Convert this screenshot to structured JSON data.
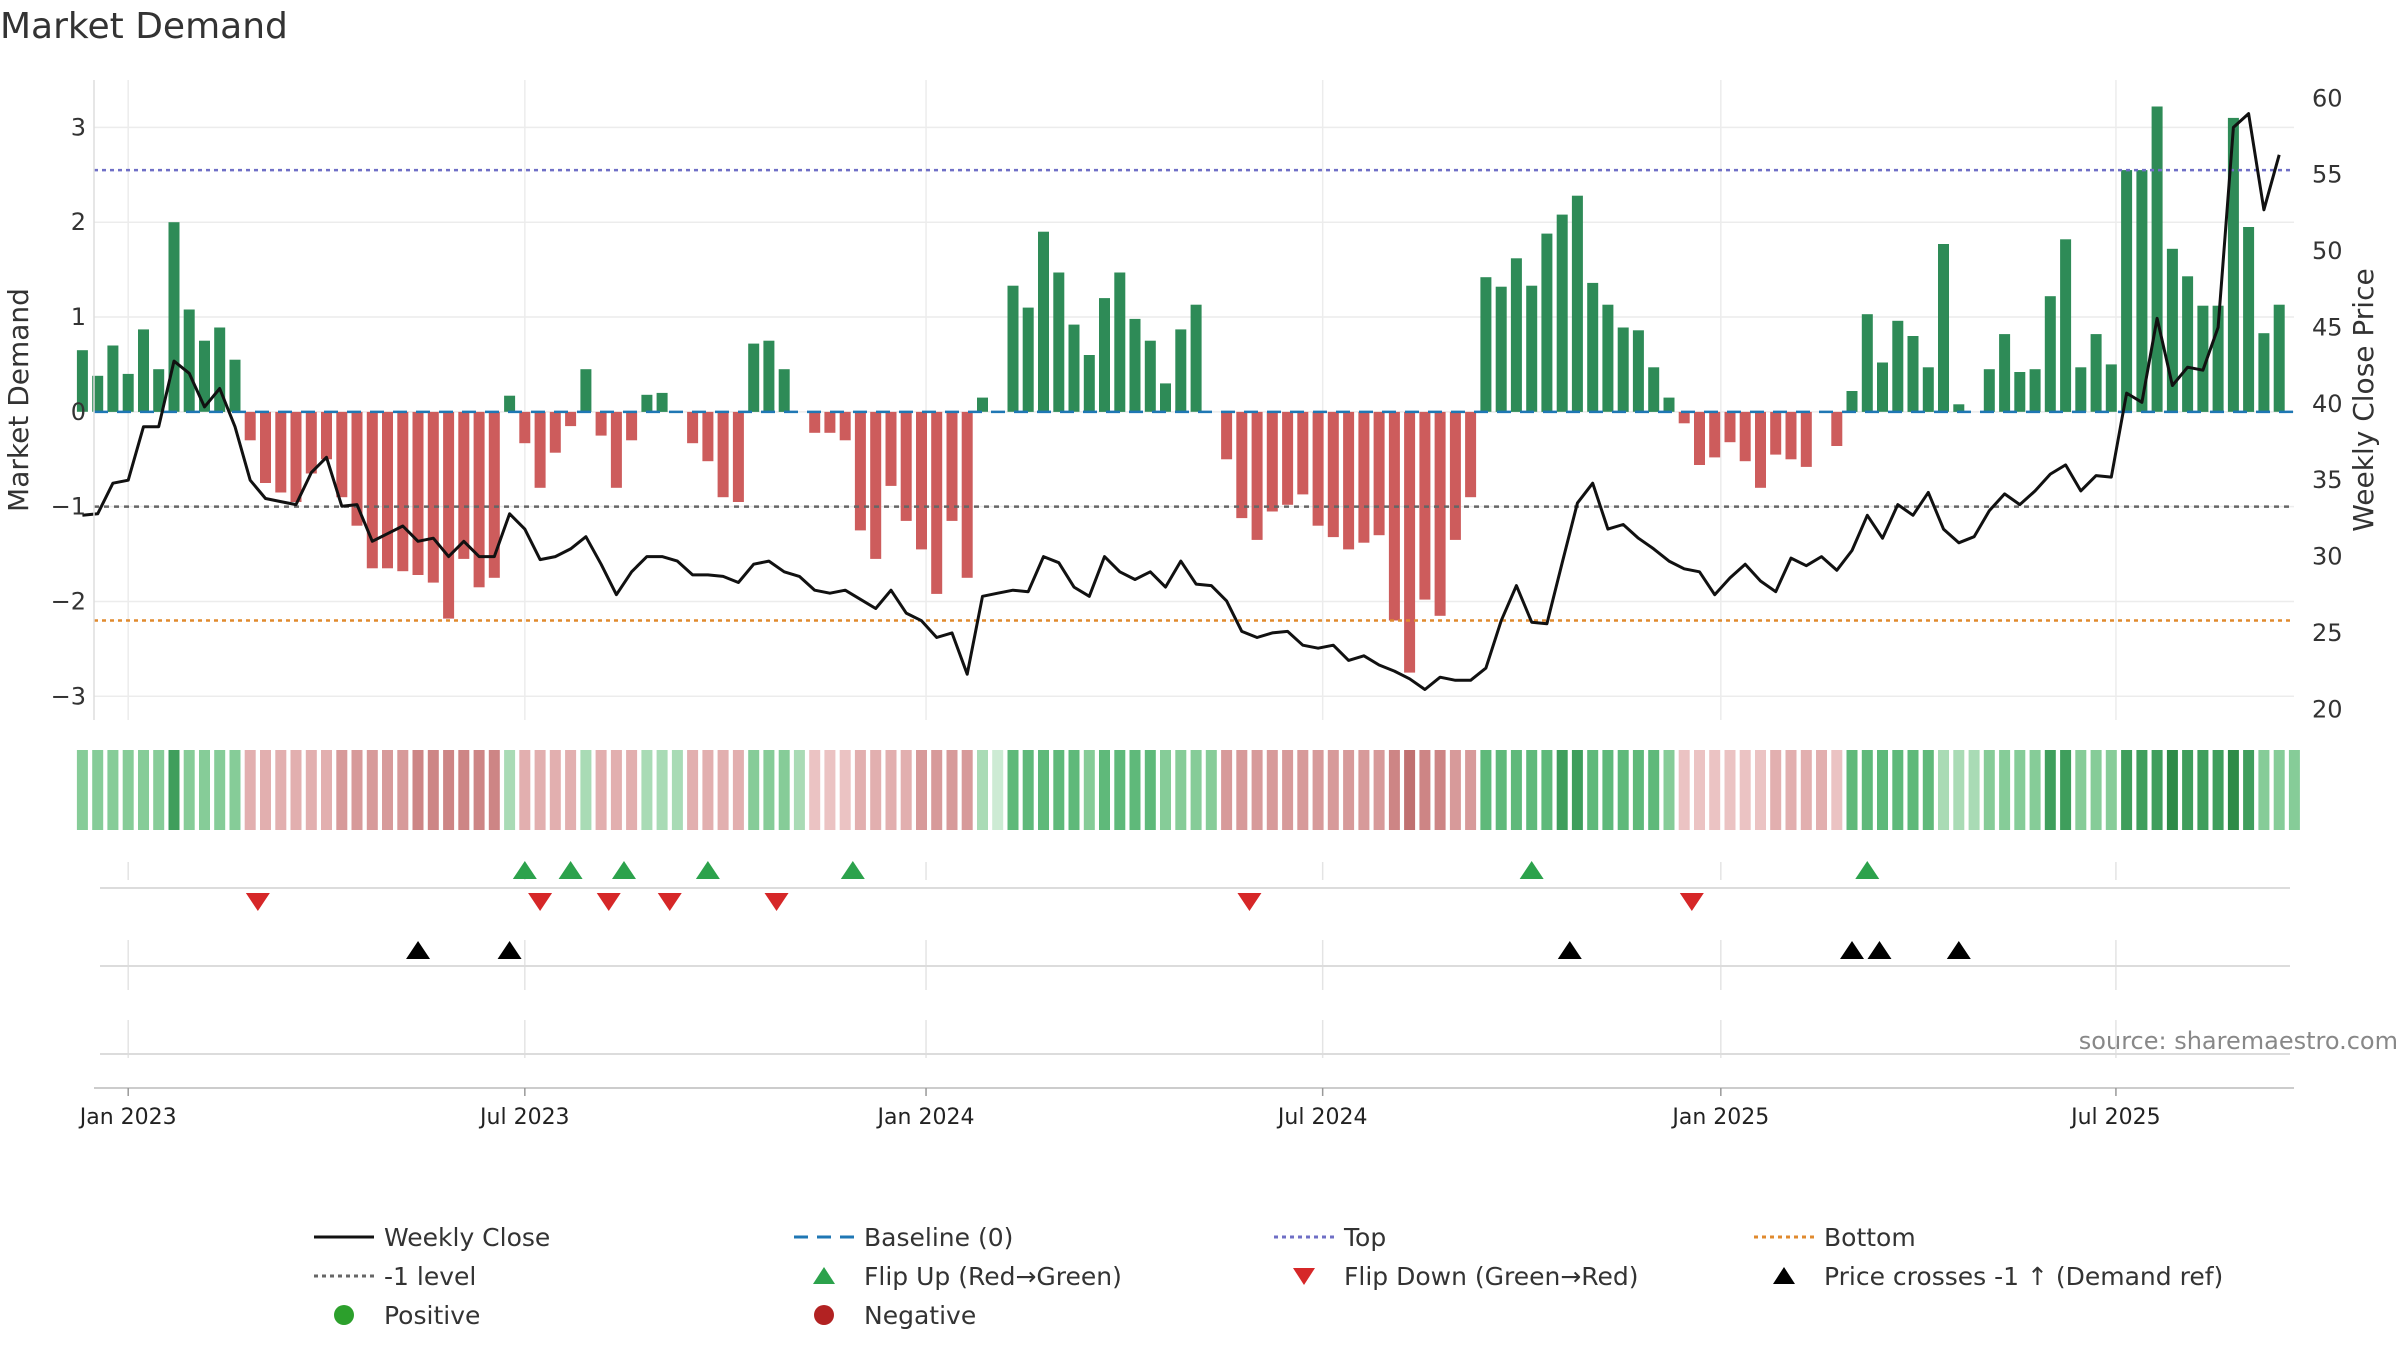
{
  "chart_data": {
    "type": "bar",
    "title": "Market Demand",
    "source_note": "source: sharemaestro.com",
    "y_left": {
      "label": "Market Demand",
      "lim": [
        -3.25,
        3.5
      ],
      "ticks": [
        -3,
        -2,
        -1,
        0,
        1,
        2,
        3
      ],
      "tick_labels": [
        "−3",
        "−2",
        "−1",
        "0",
        "1",
        "2",
        "3"
      ]
    },
    "y_right": {
      "label": "Weekly Close Price",
      "lim": [
        19.3,
        61.2
      ],
      "ticks": [
        20,
        25,
        30,
        35,
        40,
        45,
        50,
        55,
        60
      ],
      "tick_labels": [
        "20",
        "25",
        "30",
        "35",
        "40",
        "45",
        "50",
        "55",
        "60"
      ]
    },
    "x": {
      "start_week_offset": -3,
      "num_weeks": 146,
      "month_ticks": [
        {
          "week": 0,
          "label": "Jan 2023"
        },
        {
          "week": 26,
          "label": "Jul 2023"
        },
        {
          "week": 52.3,
          "label": "Jan 2024"
        },
        {
          "week": 78.3,
          "label": "Jul 2024"
        },
        {
          "week": 104.4,
          "label": "Jan 2025"
        },
        {
          "week": 130.3,
          "label": "Jul 2025"
        }
      ]
    },
    "reference_lines": {
      "top": 2.55,
      "bottom": -2.2,
      "minus_one": -1,
      "baseline": 0
    },
    "demand": [
      0.65,
      0.38,
      0.7,
      0.4,
      0.87,
      0.45,
      2.0,
      1.08,
      0.75,
      0.89,
      0.55,
      -0.3,
      -0.75,
      -0.85,
      -0.95,
      -0.65,
      -0.5,
      -0.9,
      -1.2,
      -1.65,
      -1.65,
      -1.68,
      -1.72,
      -1.8,
      -2.18,
      -1.55,
      -1.85,
      -1.75,
      0.17,
      -0.33,
      -0.8,
      -0.43,
      -0.15,
      0.45,
      -0.25,
      -0.8,
      -0.3,
      0.18,
      0.2,
      0,
      -0.33,
      -0.52,
      -0.9,
      -0.95,
      0.72,
      0.75,
      0.45,
      0,
      -0.22,
      -0.22,
      -0.3,
      -1.25,
      -1.55,
      -0.78,
      -1.15,
      -1.45,
      -1.92,
      -1.15,
      -1.75,
      0.15,
      0,
      1.33,
      1.1,
      1.9,
      1.47,
      0.92,
      0.6,
      1.2,
      1.47,
      0.98,
      0.75,
      0.3,
      0.87,
      1.13,
      0,
      -0.5,
      -1.12,
      -1.35,
      -1.05,
      -0.98,
      -0.87,
      -1.2,
      -1.32,
      -1.45,
      -1.38,
      -1.3,
      -2.2,
      -2.75,
      -1.98,
      -2.15,
      -1.35,
      -0.9,
      1.42,
      1.32,
      1.62,
      1.33,
      1.88,
      2.08,
      2.28,
      1.36,
      1.13,
      0.89,
      0.86,
      0.47,
      0.15,
      -0.12,
      -0.56,
      -0.48,
      -0.32,
      -0.52,
      -0.8,
      -0.45,
      -0.5,
      -0.58,
      0,
      -0.36,
      0.22,
      1.03,
      0.52,
      0.96,
      0.8,
      0.47,
      1.77,
      0.08,
      0,
      0.45,
      0.82,
      0.42,
      0.45,
      1.22,
      1.82,
      0.47,
      0.82,
      0.5,
      2.55,
      2.55,
      3.22,
      1.72,
      1.43,
      1.12,
      1.12,
      3.1,
      1.95,
      0.83,
      1.13
    ],
    "price": [
      32.7,
      32.8,
      34.8,
      35.0,
      38.5,
      38.5,
      42.8,
      42.0,
      39.8,
      41.0,
      38.5,
      35.0,
      33.8,
      33.6,
      33.4,
      35.5,
      36.5,
      33.3,
      33.4,
      31.0,
      31.5,
      32.0,
      31.0,
      31.2,
      30.0,
      31.0,
      30.0,
      30.0,
      32.8,
      31.8,
      29.8,
      30.0,
      30.5,
      31.3,
      29.5,
      27.5,
      29.0,
      30.0,
      30.0,
      29.7,
      28.8,
      28.8,
      28.7,
      28.3,
      29.5,
      29.7,
      29.0,
      28.7,
      27.8,
      27.6,
      27.8,
      27.2,
      26.6,
      27.8,
      26.3,
      25.8,
      24.7,
      25.0,
      22.3,
      27.4,
      27.6,
      27.8,
      27.7,
      30.0,
      29.6,
      28.0,
      27.4,
      30.0,
      29.0,
      28.5,
      29.0,
      28.0,
      29.7,
      28.2,
      28.1,
      27.1,
      25.1,
      24.7,
      25.0,
      25.1,
      24.2,
      24.0,
      24.2,
      23.2,
      23.5,
      22.9,
      22.5,
      22.0,
      21.3,
      22.1,
      21.9,
      21.9,
      22.7,
      25.8,
      28.1,
      25.7,
      25.6,
      29.6,
      33.5,
      34.8,
      31.8,
      32.1,
      31.2,
      30.5,
      29.7,
      29.2,
      29.0,
      27.5,
      28.6,
      29.5,
      28.4,
      27.7,
      29.9,
      29.4,
      30.0,
      29.1,
      30.4,
      32.7,
      31.2,
      33.4,
      32.7,
      34.2,
      31.8,
      30.9,
      31.3,
      33.0,
      34.1,
      33.4,
      34.3,
      35.4,
      36.0,
      34.3,
      35.3,
      35.2,
      40.7,
      40.1,
      45.6,
      41.2,
      42.4,
      42.2,
      45.0,
      58.1,
      59.0,
      52.7,
      56.3
    ],
    "strip_levels": [
      2,
      2,
      2,
      2,
      2,
      2,
      4,
      2,
      2,
      2,
      2,
      2,
      2,
      2,
      2,
      2,
      2,
      3,
      3,
      3,
      3,
      3,
      4,
      4,
      4,
      4,
      4,
      4,
      1,
      2,
      2,
      2,
      2,
      1,
      2,
      2,
      2,
      1,
      1,
      1,
      2,
      2,
      2,
      2,
      2,
      2,
      2,
      1,
      1,
      1,
      1,
      2,
      2,
      2,
      2,
      3,
      3,
      3,
      3,
      1,
      0,
      3,
      3,
      3,
      3,
      3,
      2,
      3,
      3,
      3,
      3,
      2,
      2,
      2,
      2,
      3,
      3,
      3,
      3,
      3,
      3,
      3,
      3,
      3,
      3,
      3,
      4,
      5,
      4,
      4,
      3,
      3,
      3,
      3,
      3,
      3,
      3,
      4,
      4,
      3,
      3,
      3,
      3,
      3,
      2,
      1,
      1,
      1,
      1,
      1,
      1,
      2,
      2,
      2,
      2,
      1,
      3,
      3,
      3,
      3,
      3,
      3,
      1,
      1,
      1,
      2,
      2,
      2,
      2,
      4,
      4,
      2,
      2,
      2,
      4,
      4,
      4,
      5,
      4,
      4,
      4,
      5,
      4,
      2,
      2,
      2
    ],
    "flip_up_weeks": [
      26,
      29,
      32.5,
      38,
      47.5,
      92,
      114
    ],
    "flip_down_weeks": [
      8.5,
      27,
      31.5,
      35.5,
      42.5,
      73.5,
      102.5
    ],
    "price_cross_up_weeks": [
      19,
      25,
      94.5,
      113,
      114.8,
      120
    ],
    "legend": [
      {
        "label": "Weekly Close",
        "kind": "line-solid",
        "color": "#111111"
      },
      {
        "label": "Baseline (0)",
        "kind": "line-dash",
        "color": "#1f77b4"
      },
      {
        "label": "Top",
        "kind": "line-dot",
        "color": "#6f6fc6"
      },
      {
        "label": "Bottom",
        "kind": "line-dot",
        "color": "#e08a2e"
      },
      {
        "label": "-1 level",
        "kind": "line-dot",
        "color": "#666666"
      },
      {
        "label": "Flip Up (Red→Green)",
        "kind": "tri-up",
        "color": "#2ca24c"
      },
      {
        "label": "Flip Down (Green→Red)",
        "kind": "tri-down",
        "color": "#d62728"
      },
      {
        "label": "Price crosses -1 ↑ (Demand ref)",
        "kind": "tri-up",
        "color": "#000000"
      },
      {
        "label": "Positive",
        "kind": "circle",
        "color": "#2ca02c"
      },
      {
        "label": "Negative",
        "kind": "circle",
        "color": "#b22222"
      }
    ],
    "colors": {
      "positive_bar": "#2e8b57",
      "negative_bar": "#cd5c5c",
      "green_scale": [
        "#cdebd4",
        "#a9dbb5",
        "#86cc98",
        "#5fb97a",
        "#3f9e5c",
        "#2e8b47"
      ],
      "red_scale": [
        "#f3d7d7",
        "#ebc3c3",
        "#e2afaf",
        "#d79a9a",
        "#cd8585",
        "#c07070"
      ]
    }
  }
}
